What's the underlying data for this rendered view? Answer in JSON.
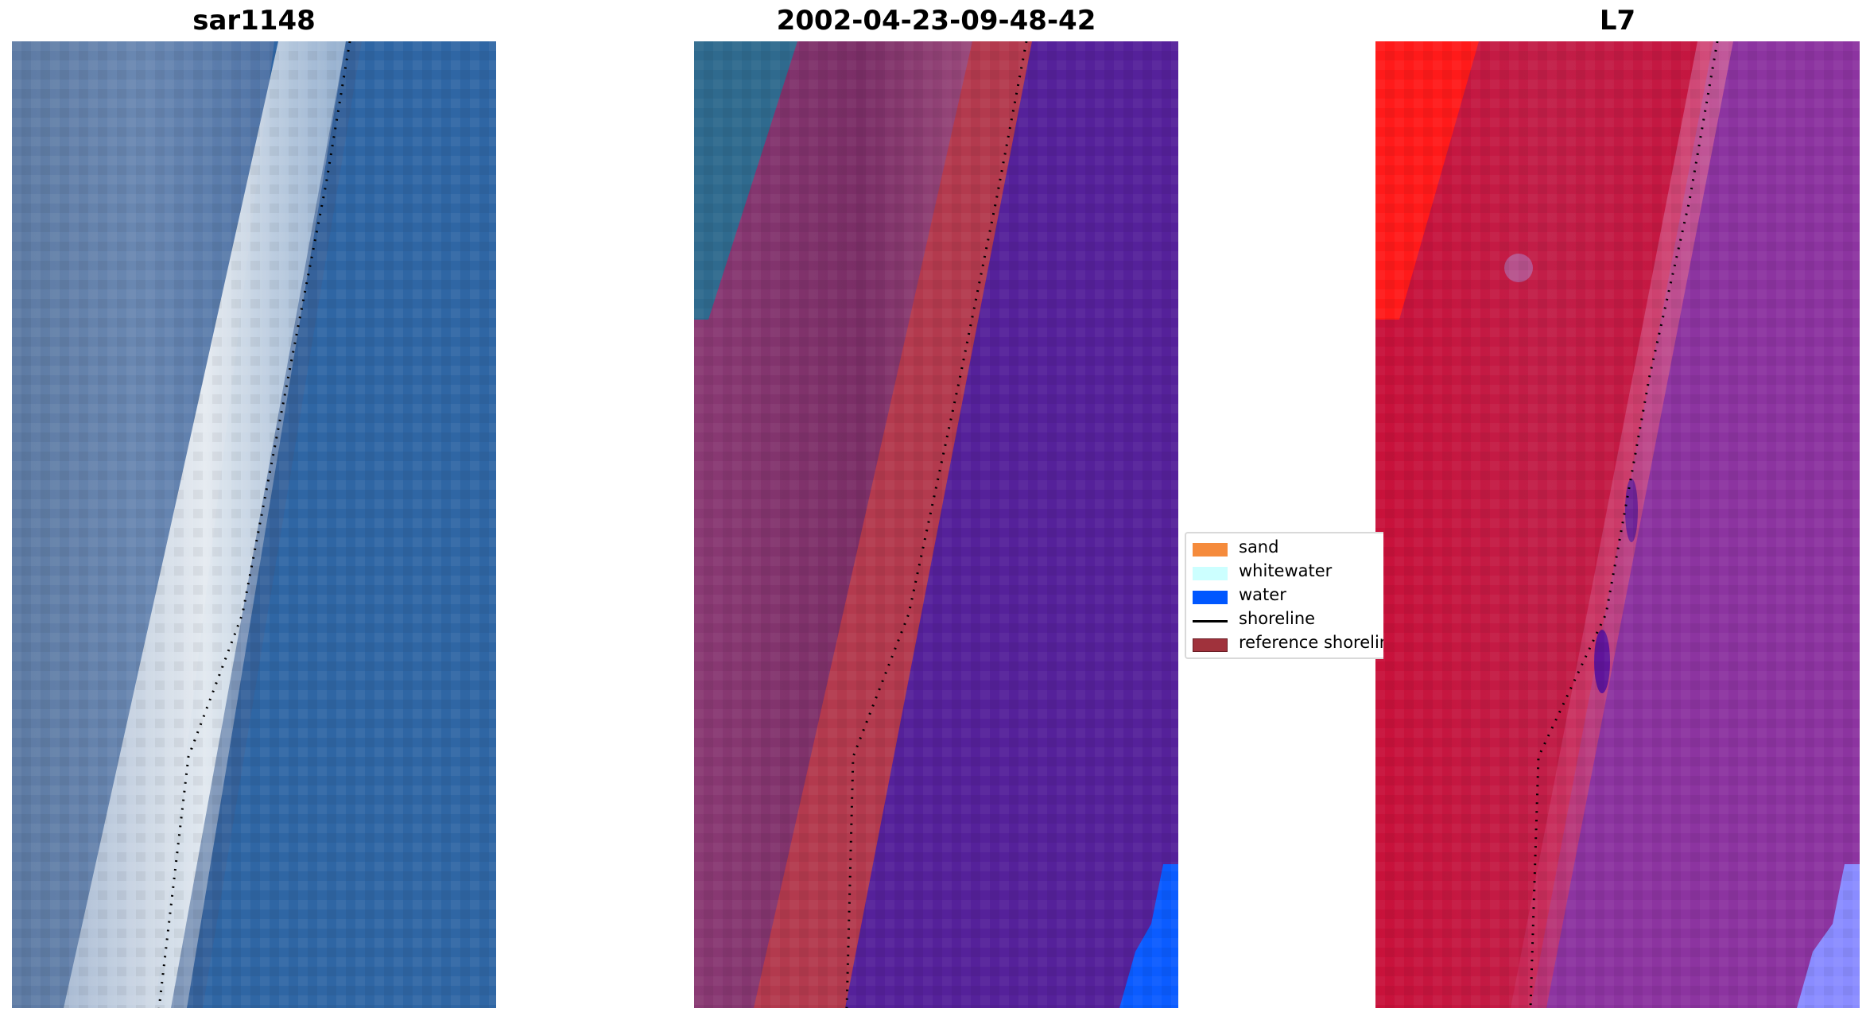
{
  "panels": [
    {
      "title": "sar1148",
      "kind": "rgb"
    },
    {
      "title": "2002-04-23-09-48-42",
      "kind": "classified"
    },
    {
      "title": "L7",
      "kind": "false-color"
    }
  ],
  "legend": {
    "items": [
      {
        "label": "sand",
        "color": "#f58b3c",
        "type": "patch"
      },
      {
        "label": "whitewater",
        "color": "#ccffff",
        "type": "patch"
      },
      {
        "label": "water",
        "color": "#0057ff",
        "type": "patch"
      },
      {
        "label": "shoreline",
        "color": "#000000",
        "type": "line"
      },
      {
        "label": "reference shoreline",
        "color": "#a0323c",
        "type": "patch"
      }
    ]
  },
  "colors": {
    "rgb_land": "#5b7aa8",
    "rgb_surf": "#e6eef5",
    "rgb_water": "#2f66a4",
    "class_land": "#7a2e66",
    "class_band": "#b33a4e",
    "class_water": "#55219a",
    "class_water_bright": "#0b5cff",
    "fc_land": "#c5153f",
    "fc_edge": "#ff1a1a",
    "fc_water": "#8c34a0",
    "fc_water_bright": "#8a8cff",
    "shoreline_dots": "#000000"
  }
}
